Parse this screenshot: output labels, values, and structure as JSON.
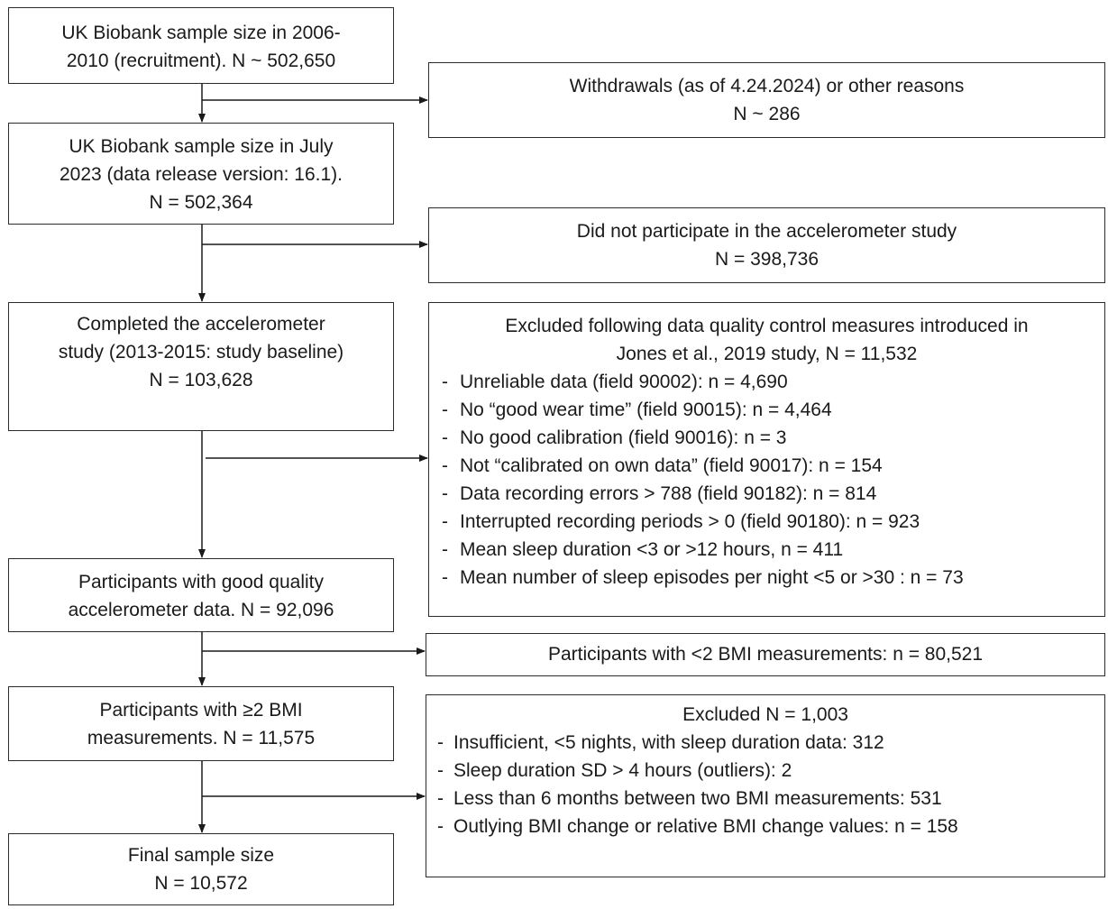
{
  "main_flow": [
    {
      "lines": [
        "UK Biobank sample size in 2006-",
        "2010 (recruitment). N ~ 502,650"
      ]
    },
    {
      "lines": [
        "UK Biobank sample size in July",
        "2023 (data release version: 16.1).",
        "N = 502,364"
      ]
    },
    {
      "lines": [
        "Completed the accelerometer",
        "study (2013-2015: study baseline)",
        "N = 103,628"
      ]
    },
    {
      "lines": [
        "Participants with good quality",
        "accelerometer data. N = 92,096"
      ]
    },
    {
      "lines": [
        "Participants with ≥2 BMI",
        "measurements. N = 11,575"
      ]
    },
    {
      "lines": [
        "Final sample size",
        "N = 10,572"
      ]
    }
  ],
  "exclusions": [
    {
      "header": [
        "Withdrawals (as of 4.24.2024) or other reasons",
        "N ~ 286"
      ],
      "items": []
    },
    {
      "header": [
        "Did not participate in the accelerometer study",
        "N = 398,736"
      ],
      "items": []
    },
    {
      "header": [
        "Excluded following data quality control measures introduced in",
        "Jones et al., 2019 study, N = 11,532"
      ],
      "items": [
        "Unreliable data (field 90002): n = 4,690",
        "No “good wear time” (field 90015): n = 4,464",
        "No good calibration (field 90016): n = 3",
        "Not “calibrated on own data” (field 90017): n = 154",
        "Data recording errors > 788 (field 90182): n = 814",
        "Interrupted recording periods > 0 (field 90180): n = 923",
        "Mean sleep duration <3 or >12 hours, n = 411",
        "Mean number of sleep episodes per night <5 or >30 : n = 73"
      ]
    },
    {
      "header": [
        "Participants with <2 BMI measurements: n = 80,521"
      ],
      "items": []
    },
    {
      "header": [
        "Excluded N = 1,003"
      ],
      "items": [
        "Insufficient, <5 nights, with sleep duration data: 312",
        "Sleep duration SD > 4 hours (outliers): 2",
        "Less than 6 months between two BMI measurements: 531",
        "Outlying BMI change or relative BMI change values: n =  158"
      ]
    }
  ],
  "bullet_char": "-"
}
